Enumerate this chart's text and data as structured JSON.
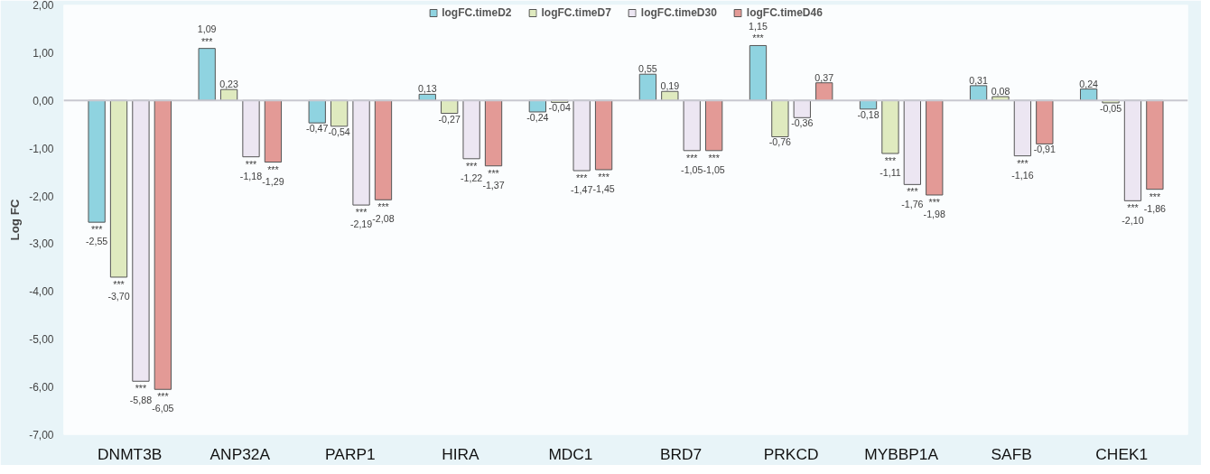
{
  "chart_data": {
    "type": "bar",
    "ylabel": "Log FC",
    "categories": [
      "DNMT3B",
      "ANP32A",
      "PARP1",
      "HIRA",
      "MDC1",
      "BRD7",
      "PRKCD",
      "MYBBP1A",
      "SAFB",
      "CHEK1"
    ],
    "series": [
      {
        "name": "logFC.timeD2",
        "color": "#8fd3e0",
        "values": [
          -2.55,
          1.09,
          -0.47,
          0.13,
          -0.24,
          0.55,
          1.15,
          -0.18,
          0.31,
          0.24
        ],
        "value_labels": [
          "***\n-2,55",
          "1,09\n***",
          "-0,47",
          "0,13",
          "-0,24",
          "0,55",
          "1,15\n***",
          "-0,18",
          "0,31",
          "0,24"
        ]
      },
      {
        "name": "logFC.timeD7",
        "color": "#dfeabf",
        "values": [
          -3.7,
          0.23,
          -0.54,
          -0.27,
          -0.04,
          0.19,
          -0.76,
          -1.11,
          0.08,
          -0.05
        ],
        "value_labels": [
          "***\n-3,70",
          "0,23",
          "-0,54",
          "-0,27",
          "-0,04",
          "0,19",
          "-0,76",
          "***\n-1,11",
          "0,08",
          "-0,05"
        ]
      },
      {
        "name": "logFC.timeD30",
        "color": "#ece6f2",
        "values": [
          -5.88,
          -1.18,
          -2.19,
          -1.22,
          -1.47,
          -1.05,
          -0.36,
          -1.76,
          -1.16,
          -2.1
        ],
        "value_labels": [
          "***\n-5,88",
          "***\n-1,18",
          "***\n-2,19",
          "***\n-1,22",
          "***\n-1,47",
          "***\n-1,05",
          "-0,36",
          "***\n-1,76",
          "***\n-1,16",
          "***\n-2,10"
        ]
      },
      {
        "name": "logFC.timeD46",
        "color": "#e39a96",
        "values": [
          -6.05,
          -1.29,
          -2.08,
          -1.37,
          -1.45,
          -1.05,
          0.37,
          -1.98,
          -0.91,
          -1.86
        ],
        "value_labels": [
          "***\n-6,05",
          "***\n-1,29",
          "***\n-2,08",
          "***\n-1,37",
          "***\n-1,45",
          "***\n-1,05",
          "0,37",
          "***\n-1,98",
          "-0,91",
          "***\n-1,86"
        ]
      }
    ],
    "ylim": [
      -7,
      2
    ],
    "yticks": [
      {
        "value": 2,
        "label": "2,00"
      },
      {
        "value": 1,
        "label": "1,00"
      },
      {
        "value": 0,
        "label": "0,00"
      },
      {
        "value": -1,
        "label": "-1,00"
      },
      {
        "value": -2,
        "label": "-2,00"
      },
      {
        "value": -3,
        "label": "-3,00"
      },
      {
        "value": -4,
        "label": "-4,00"
      },
      {
        "value": -5,
        "label": "-5,00"
      },
      {
        "value": -6,
        "label": "-6,00"
      },
      {
        "value": -7,
        "label": "-7,00"
      }
    ],
    "legend": "top"
  }
}
